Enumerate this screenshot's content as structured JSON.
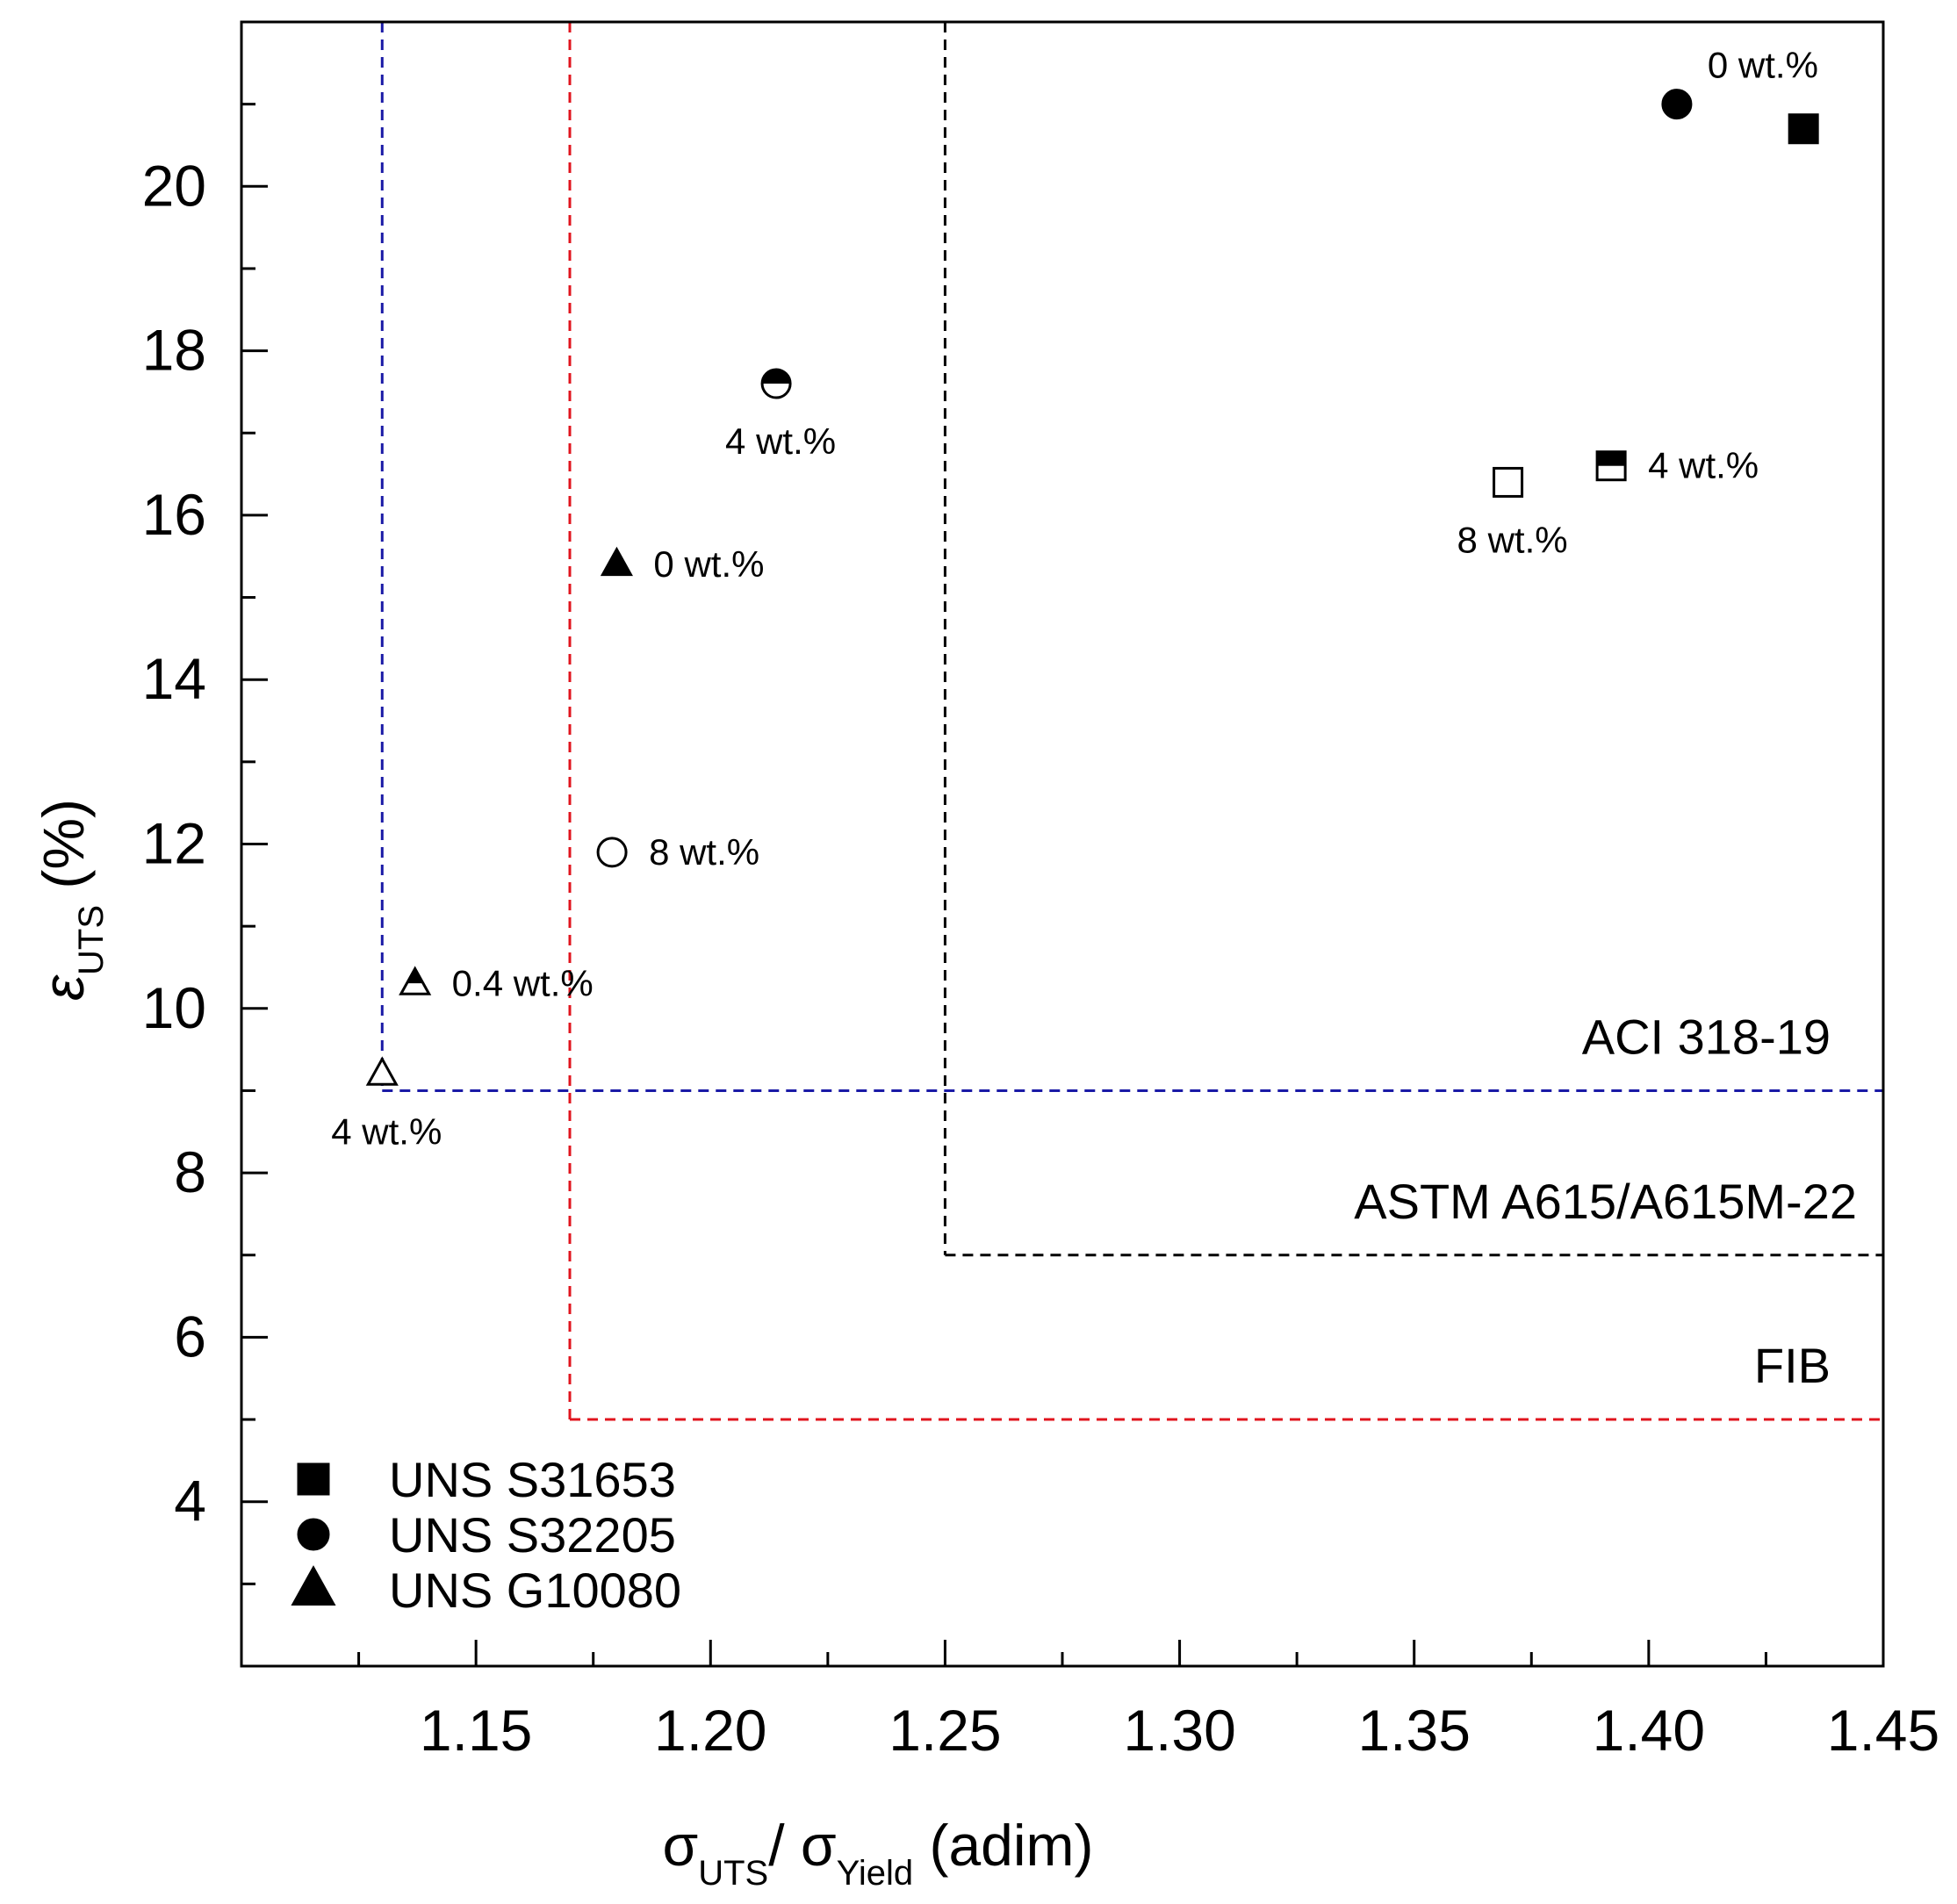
{
  "chart_data": {
    "type": "scatter",
    "x_axis": {
      "label_main": "σ",
      "label_sub1": "UTS",
      "label_mid": "/ σ",
      "label_sub2": "Yield",
      "label_unit": " (adim)",
      "range": [
        1.1,
        1.45
      ],
      "major_ticks": [
        1.15,
        1.2,
        1.25,
        1.3,
        1.35,
        1.4,
        1.45
      ],
      "tick_labels": [
        "1.15",
        "1.20",
        "1.25",
        "1.30",
        "1.35",
        "1.40",
        "1.45"
      ],
      "minor_ticks": [
        1.125,
        1.175,
        1.225,
        1.275,
        1.325,
        1.375,
        1.425
      ]
    },
    "y_axis": {
      "label_main": "ε",
      "label_sub": "UTS",
      "label_unit": " (%)",
      "range": [
        2,
        22
      ],
      "major_ticks": [
        4,
        6,
        8,
        10,
        12,
        14,
        16,
        18,
        20
      ],
      "tick_labels": [
        "4",
        "6",
        "8",
        "10",
        "12",
        "14",
        "16",
        "18",
        "20"
      ],
      "minor_ticks": [
        3,
        5,
        7,
        9,
        11,
        13,
        15,
        17,
        19,
        21
      ]
    },
    "series": [
      {
        "name": "UNS S31653",
        "marker": "square",
        "points": [
          {
            "x": 1.433,
            "y": 20.7,
            "fill": "full",
            "label": "",
            "label_pos": "none"
          },
          {
            "x": 1.392,
            "y": 16.6,
            "fill": "half",
            "label": "4 wt.%",
            "label_pos": "right"
          },
          {
            "x": 1.37,
            "y": 16.4,
            "fill": "empty",
            "label": "8 wt.%",
            "label_pos": "below"
          }
        ]
      },
      {
        "name": "UNS S32205",
        "marker": "circle",
        "points": [
          {
            "x": 1.406,
            "y": 21.0,
            "fill": "full",
            "label": "0 wt.%",
            "label_pos": "above-right"
          },
          {
            "x": 1.214,
            "y": 17.6,
            "fill": "half",
            "label": "4 wt.%",
            "label_pos": "below"
          },
          {
            "x": 1.179,
            "y": 11.9,
            "fill": "empty",
            "label": "8 wt.%",
            "label_pos": "right"
          }
        ]
      },
      {
        "name": "UNS G10080",
        "marker": "triangle",
        "points": [
          {
            "x": 1.18,
            "y": 15.4,
            "fill": "full",
            "label": "0 wt.%",
            "label_pos": "right"
          },
          {
            "x": 1.137,
            "y": 10.3,
            "fill": "half",
            "label": "0.4 wt.%",
            "label_pos": "right"
          },
          {
            "x": 1.13,
            "y": 9.2,
            "fill": "empty",
            "label": "4 wt.%",
            "label_pos": "below"
          }
        ]
      }
    ],
    "reference_lines": [
      {
        "name": "ACI 318-19",
        "x_min": 1.13,
        "y_min": 9.0,
        "color": "#1a1aa6"
      },
      {
        "name": "ASTM A615/A615M-22",
        "x_min": 1.25,
        "y_min": 7.0,
        "color": "#000000"
      },
      {
        "name": "FIB",
        "x_min": 1.17,
        "y_min": 5.0,
        "color": "#e0141e"
      }
    ],
    "legend": {
      "position": "bottom-left",
      "entries": [
        {
          "label": "UNS S31653",
          "marker": "square"
        },
        {
          "label": "UNS S32205",
          "marker": "circle"
        },
        {
          "label": "UNS G10080",
          "marker": "triangle"
        }
      ]
    },
    "grid": false
  }
}
